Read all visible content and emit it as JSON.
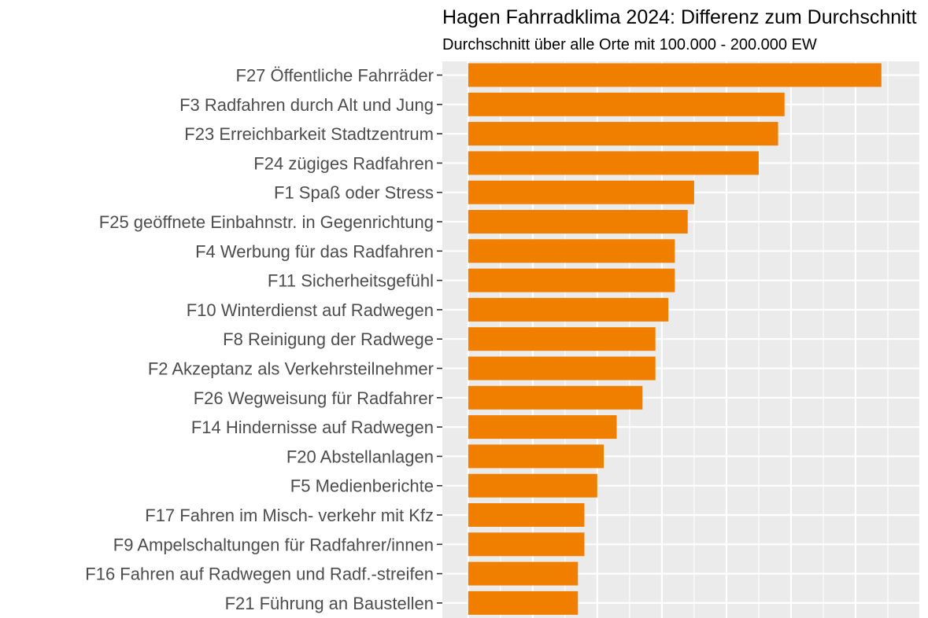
{
  "chart_data": {
    "type": "bar",
    "orientation": "horizontal",
    "title": "Hagen Fahrradklima 2024: Differenz zum Durchschnitt",
    "subtitle": "Durchschnitt über alle Orte mit 100.000 - 200.000 EW",
    "xlabel": "",
    "ylabel": "",
    "xlim": [
      -0.04,
      0.7
    ],
    "grid": true,
    "legend": "none",
    "bar_color": "#F07F00",
    "panel_background": "#EBEBEB",
    "categories": [
      "F27 Öffentliche Fahrräder",
      "F3 Radfahren durch Alt und Jung",
      "F23 Erreichbarkeit Stadtzentrum",
      "F24 zügiges Radfahren",
      "F1 Spaß oder Stress",
      "F25 geöffnete Einbahnstr. in Gegenrichtung",
      "F4 Werbung für das Radfahren",
      "F11 Sicherheitsgefühl",
      "F10 Winterdienst auf Radwegen",
      "F8 Reinigung der Radwege",
      "F2 Akzeptanz als Verkehrsteilnehmer",
      "F26 Wegweisung für Radfahrer",
      "F14 Hindernisse auf Radwegen",
      "F20 Abstellanlagen",
      "F5 Medienberichte",
      "F17 Fahren im Misch- verkehr mit Kfz",
      "F9 Ampelschaltungen für Radfahrer/innen",
      "F16 Fahren auf Radwegen und Radf.-streifen",
      "F21 Führung an Baustellen"
    ],
    "values": [
      0.64,
      0.49,
      0.48,
      0.45,
      0.35,
      0.34,
      0.32,
      0.32,
      0.31,
      0.29,
      0.29,
      0.27,
      0.23,
      0.21,
      0.2,
      0.18,
      0.18,
      0.17,
      0.17
    ]
  }
}
